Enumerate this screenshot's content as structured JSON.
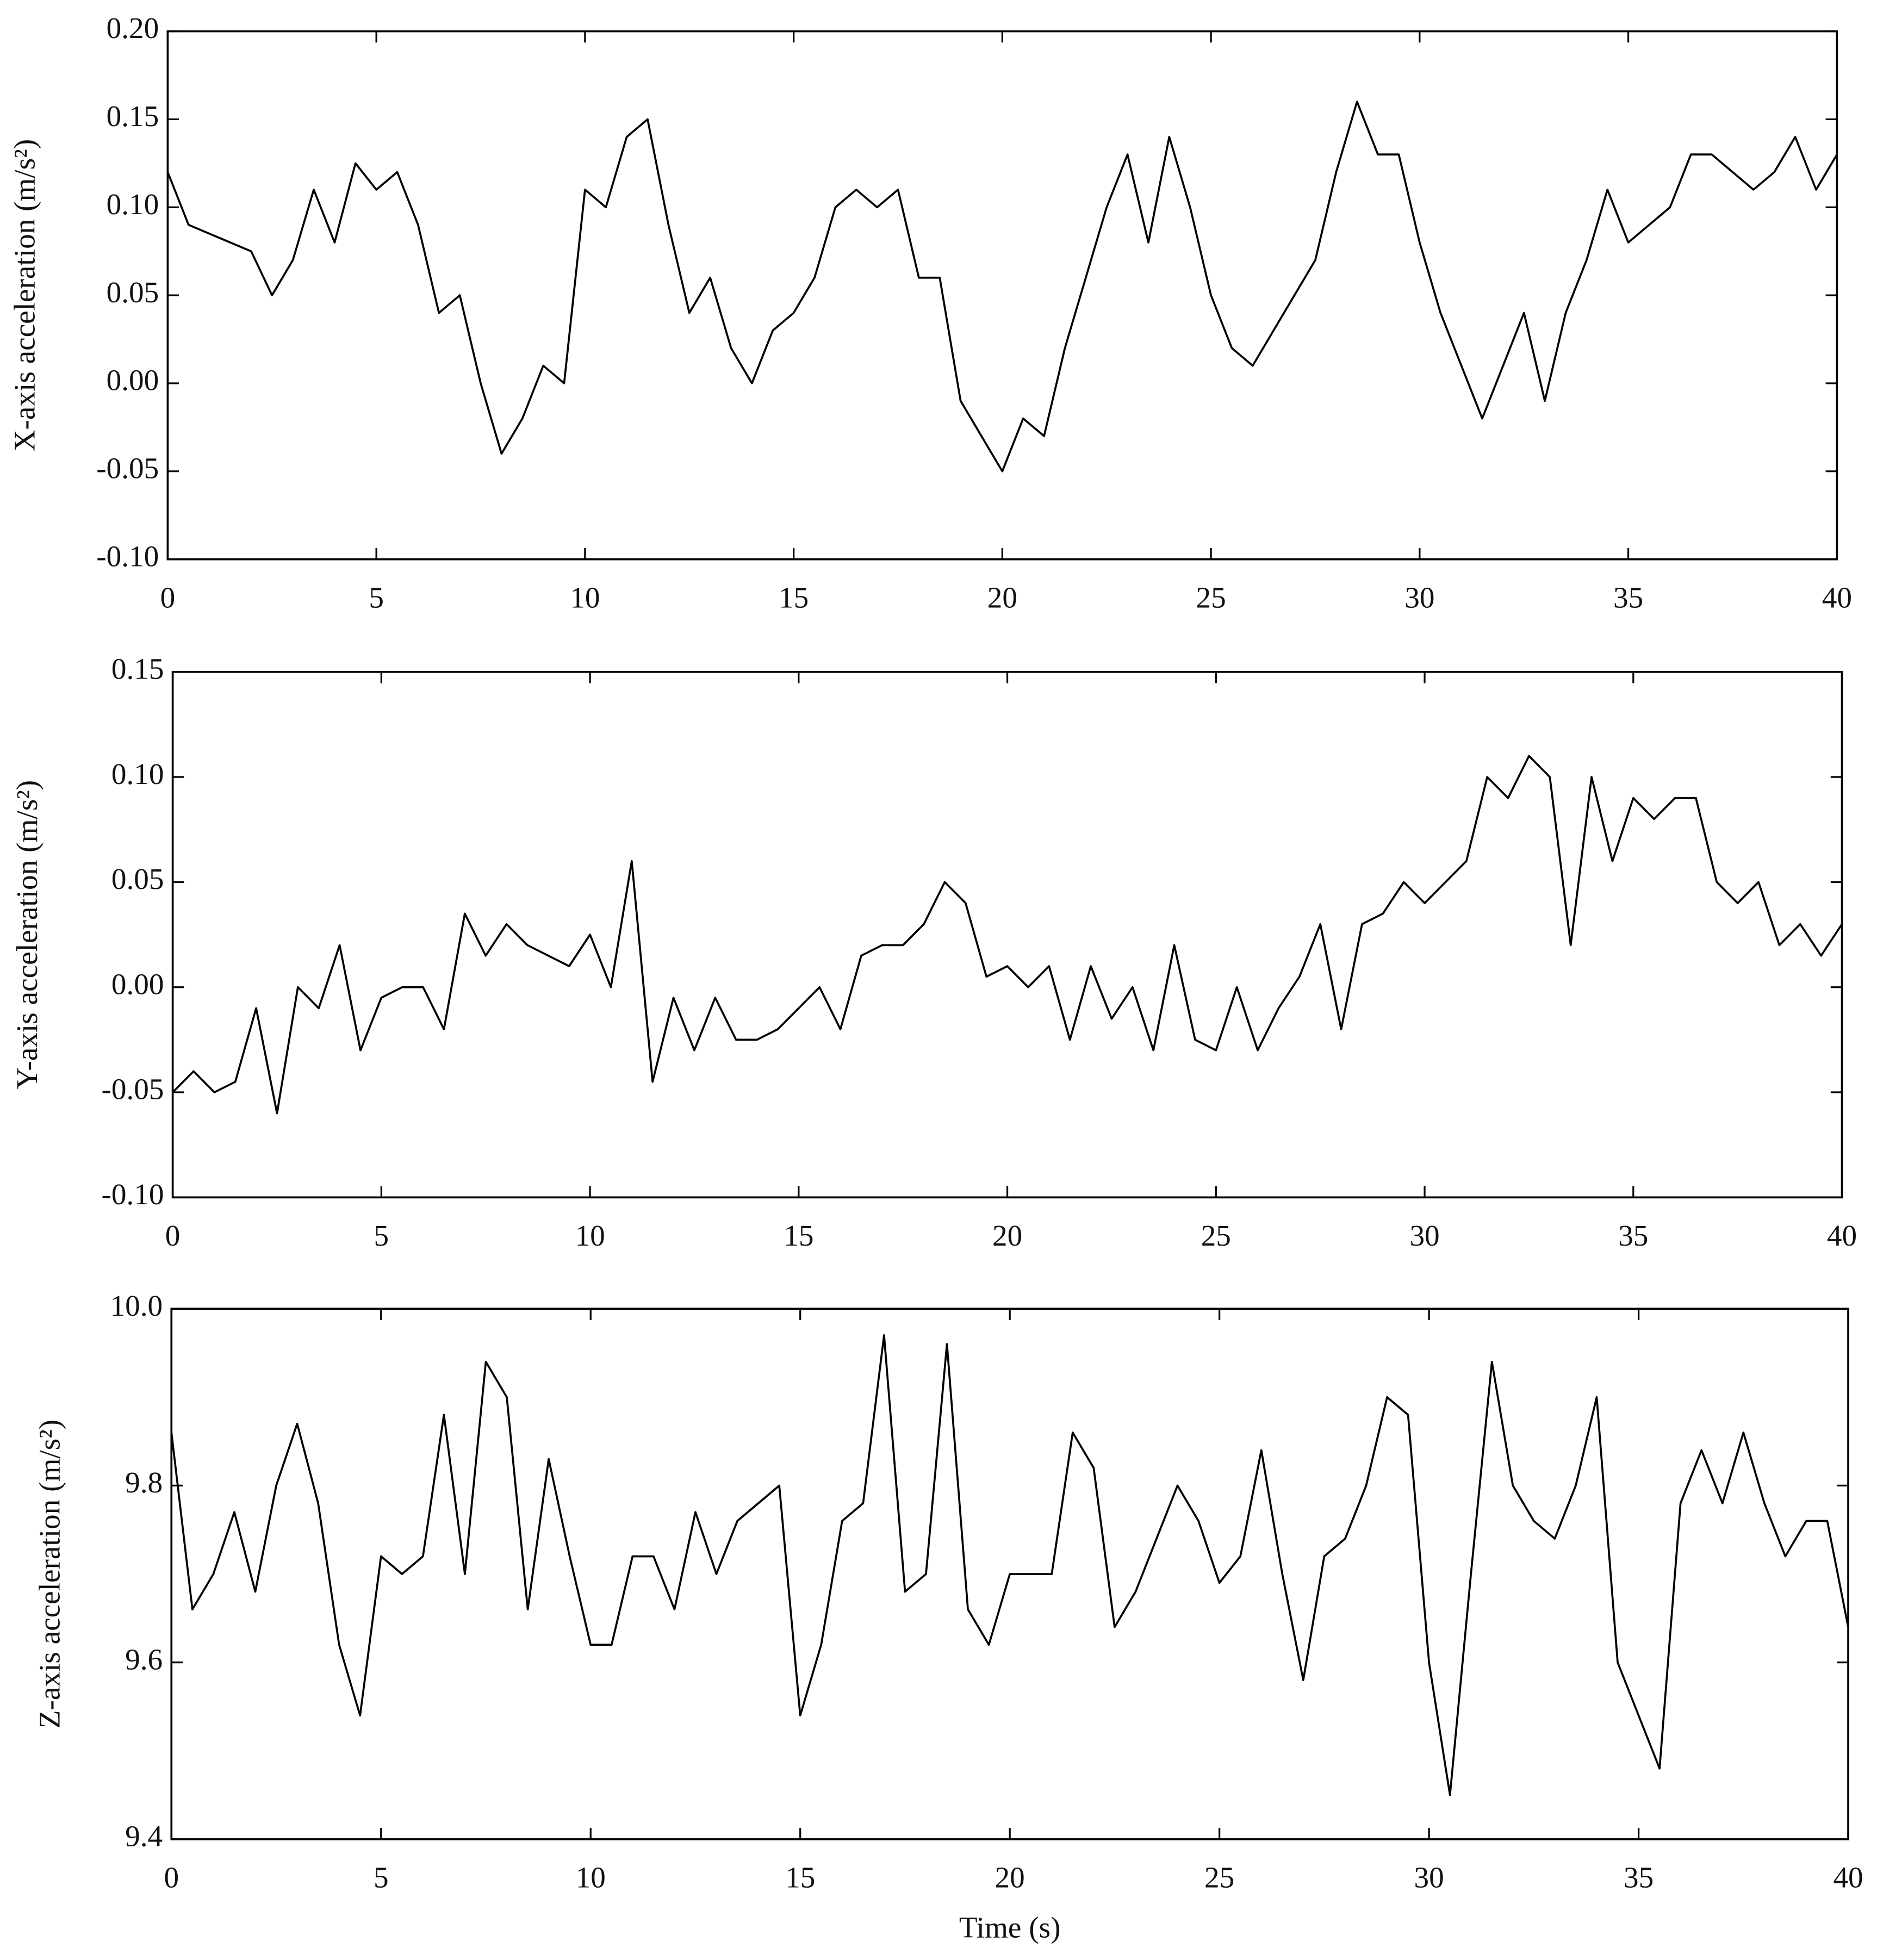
{
  "chart_data": [
    {
      "type": "line",
      "ylabel": "X-axis acceleration (m/s²)",
      "x": [
        0,
        0.5,
        1,
        1.5,
        2,
        2.5,
        3,
        3.5,
        4,
        4.5,
        5,
        5.5,
        6,
        6.5,
        7,
        7.5,
        8,
        8.5,
        9,
        9.5,
        10,
        10.5,
        11,
        11.5,
        12,
        12.5,
        13,
        13.5,
        14,
        14.5,
        15,
        15.5,
        16,
        16.5,
        17,
        17.5,
        18,
        18.5,
        19,
        19.5,
        20,
        20.5,
        21,
        21.5,
        22,
        22.5,
        23,
        23.5,
        24,
        24.5,
        25,
        25.5,
        26,
        26.5,
        27,
        27.5,
        28,
        28.5,
        29,
        29.5,
        30,
        30.5,
        31,
        31.5,
        32,
        32.5,
        33,
        33.5,
        34,
        34.5,
        35,
        35.5,
        36,
        36.5,
        37,
        37.5,
        38,
        38.5,
        39,
        39.5,
        40
      ],
      "series": [
        {
          "color": "#000000",
          "values": [
            0.12,
            0.09,
            0.085,
            0.08,
            0.075,
            0.05,
            0.07,
            0.11,
            0.08,
            0.125,
            0.11,
            0.12,
            0.09,
            0.04,
            0.05,
            0.0,
            -0.04,
            -0.02,
            0.01,
            0.0,
            0.11,
            0.1,
            0.14,
            0.15,
            0.09,
            0.04,
            0.06,
            0.02,
            0.0,
            0.03,
            0.04,
            0.06,
            0.1,
            0.11,
            0.1,
            0.11,
            0.06,
            0.06,
            -0.01,
            -0.03,
            -0.05,
            -0.02,
            -0.03,
            0.02,
            0.06,
            0.1,
            0.13,
            0.08,
            0.14,
            0.1,
            0.05,
            0.02,
            0.01,
            0.03,
            0.05,
            0.07,
            0.12,
            0.16,
            0.13,
            0.13,
            0.08,
            0.04,
            0.01,
            -0.02,
            0.01,
            0.04,
            -0.01,
            0.04,
            0.07,
            0.11,
            0.08,
            0.09,
            0.1,
            0.13,
            0.13,
            0.12,
            0.11,
            0.12,
            0.14,
            0.11,
            0.13
          ]
        }
      ],
      "xlim": [
        0,
        40
      ],
      "xticks": [
        0,
        5,
        10,
        15,
        20,
        25,
        30,
        35,
        40
      ],
      "ylim": [
        -0.1,
        0.2
      ],
      "yticks": [
        {
          "value": -0.1,
          "label": "-0.10"
        },
        -0.05,
        {
          "value": 0,
          "label": "0.00"
        },
        0.05,
        {
          "value": 0.1,
          "label": "0.10"
        },
        0.15,
        {
          "value": 0.2,
          "label": "0.20"
        }
      ]
    },
    {
      "type": "line",
      "ylabel": "Y-axis acceleration (m/s²)",
      "x": [
        0,
        0.5,
        1,
        1.5,
        2,
        2.5,
        3,
        3.5,
        4,
        4.5,
        5,
        5.5,
        6,
        6.5,
        7,
        7.5,
        8,
        8.5,
        9,
        9.5,
        10,
        10.5,
        11,
        11.5,
        12,
        12.5,
        13,
        13.5,
        14,
        14.5,
        15,
        15.5,
        16,
        16.5,
        17,
        17.5,
        18,
        18.5,
        19,
        19.5,
        20,
        20.5,
        21,
        21.5,
        22,
        22.5,
        23,
        23.5,
        24,
        24.5,
        25,
        25.5,
        26,
        26.5,
        27,
        27.5,
        28,
        28.5,
        29,
        29.5,
        30,
        30.5,
        31,
        31.5,
        32,
        32.5,
        33,
        33.5,
        34,
        34.5,
        35,
        35.5,
        36,
        36.5,
        37,
        37.5,
        38,
        38.5,
        39,
        39.5,
        40
      ],
      "series": [
        {
          "color": "#000000",
          "values": [
            -0.05,
            -0.04,
            -0.05,
            -0.045,
            -0.01,
            -0.06,
            0.0,
            -0.01,
            0.02,
            -0.03,
            -0.005,
            0.0,
            0.0,
            -0.02,
            0.035,
            0.015,
            0.03,
            0.02,
            0.015,
            0.01,
            0.025,
            0.0,
            0.06,
            -0.045,
            -0.005,
            -0.03,
            -0.005,
            -0.025,
            -0.025,
            -0.02,
            -0.01,
            0.0,
            -0.02,
            0.015,
            0.02,
            0.02,
            0.03,
            0.05,
            0.04,
            0.005,
            0.01,
            0.0,
            0.01,
            -0.025,
            0.01,
            -0.015,
            0.0,
            -0.03,
            0.02,
            -0.025,
            -0.03,
            0.0,
            -0.03,
            -0.01,
            0.005,
            0.03,
            -0.02,
            0.03,
            0.035,
            0.05,
            0.04,
            0.05,
            0.06,
            0.1,
            0.09,
            0.11,
            0.1,
            0.02,
            0.1,
            0.06,
            0.09,
            0.08,
            0.09,
            0.09,
            0.05,
            0.04,
            0.05,
            0.02,
            0.03,
            0.015,
            0.03
          ]
        }
      ],
      "xlim": [
        0,
        40
      ],
      "xticks": [
        0,
        5,
        10,
        15,
        20,
        25,
        30,
        35,
        40
      ],
      "ylim": [
        -0.1,
        0.15
      ],
      "yticks": [
        {
          "value": -0.1,
          "label": "-0.10"
        },
        -0.05,
        {
          "value": 0,
          "label": "0.00"
        },
        0.05,
        {
          "value": 0.1,
          "label": "0.10"
        },
        0.15
      ]
    },
    {
      "type": "line",
      "ylabel": "Z-axis acceleration (m/s²)",
      "xlabel": "Time (s)",
      "x": [
        0,
        0.5,
        1,
        1.5,
        2,
        2.5,
        3,
        3.5,
        4,
        4.5,
        5,
        5.5,
        6,
        6.5,
        7,
        7.5,
        8,
        8.5,
        9,
        9.5,
        10,
        10.5,
        11,
        11.5,
        12,
        12.5,
        13,
        13.5,
        14,
        14.5,
        15,
        15.5,
        16,
        16.5,
        17,
        17.5,
        18,
        18.5,
        19,
        19.5,
        20,
        20.5,
        21,
        21.5,
        22,
        22.5,
        23,
        23.5,
        24,
        24.5,
        25,
        25.5,
        26,
        26.5,
        27,
        27.5,
        28,
        28.5,
        29,
        29.5,
        30,
        30.5,
        31,
        31.5,
        32,
        32.5,
        33,
        33.5,
        34,
        34.5,
        35,
        35.5,
        36,
        36.5,
        37,
        37.5,
        38,
        38.5,
        39,
        39.5,
        40
      ],
      "series": [
        {
          "color": "#000000",
          "values": [
            9.86,
            9.66,
            9.7,
            9.77,
            9.68,
            9.8,
            9.87,
            9.78,
            9.62,
            9.54,
            9.72,
            9.7,
            9.72,
            9.88,
            9.7,
            9.94,
            9.9,
            9.66,
            9.83,
            9.72,
            9.62,
            9.62,
            9.72,
            9.72,
            9.66,
            9.77,
            9.7,
            9.76,
            9.78,
            9.8,
            9.54,
            9.62,
            9.76,
            9.78,
            9.97,
            9.68,
            9.7,
            9.96,
            9.66,
            9.62,
            9.7,
            9.7,
            9.7,
            9.86,
            9.82,
            9.64,
            9.68,
            9.74,
            9.8,
            9.76,
            9.69,
            9.72,
            9.84,
            9.7,
            9.58,
            9.72,
            9.74,
            9.8,
            9.9,
            9.88,
            9.6,
            9.45,
            9.7,
            9.94,
            9.8,
            9.76,
            9.74,
            9.8,
            9.9,
            9.6,
            9.54,
            9.48,
            9.78,
            9.84,
            9.78,
            9.86,
            9.78,
            9.72,
            9.76,
            9.76,
            9.64
          ]
        }
      ],
      "xlim": [
        0,
        40
      ],
      "xticks": [
        0,
        5,
        10,
        15,
        20,
        25,
        30,
        35,
        40
      ],
      "ylim": [
        9.4,
        10.0
      ],
      "yticks": [
        9.4,
        9.6,
        9.8,
        {
          "value": 10,
          "label": "10.0"
        }
      ]
    }
  ]
}
